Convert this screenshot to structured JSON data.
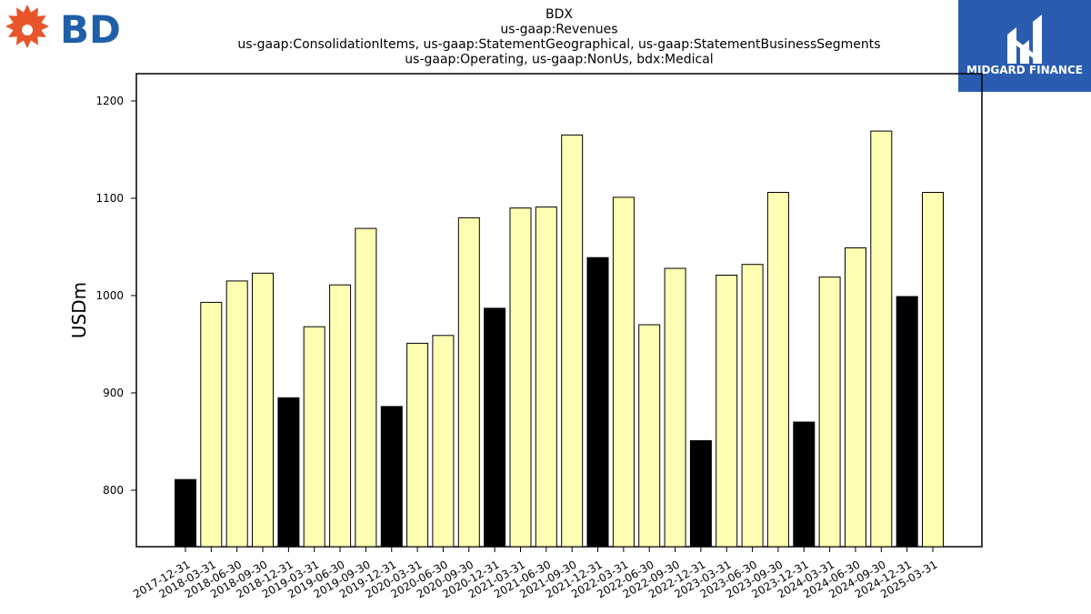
{
  "company_logo": {
    "text": "BD",
    "color": "#1f5fa8",
    "burst_color": "#e8552a"
  },
  "watermark_logo": {
    "text": "MIDGARD FINANCE",
    "bg_color": "#2a5db0"
  },
  "chart_data": {
    "type": "bar",
    "title_lines": [
      "BDX",
      "us-gaap:Revenues",
      "us-gaap:ConsolidationItems, us-gaap:StatementGeographical, us-gaap:StatementBusinessSegments",
      "us-gaap:Operating, us-gaap:NonUs, bdx:Medical"
    ],
    "ylabel": "USDm",
    "xlabel": "",
    "ylim": [
      742,
      1228
    ],
    "yticks": [
      800,
      900,
      1000,
      1100,
      1200
    ],
    "categories": [
      "2017-12-31",
      "2018-03-31",
      "2018-06-30",
      "2018-09-30",
      "2018-12-31",
      "2019-03-31",
      "2019-06-30",
      "2019-09-30",
      "2019-12-31",
      "2020-03-31",
      "2020-06-30",
      "2020-09-30",
      "2020-12-31",
      "2021-03-31",
      "2021-06-30",
      "2021-09-30",
      "2021-12-31",
      "2022-03-31",
      "2022-06-30",
      "2022-09-30",
      "2022-12-31",
      "2023-03-31",
      "2023-06-30",
      "2023-09-30",
      "2023-12-31",
      "2024-03-31",
      "2024-06-30",
      "2024-09-30",
      "2024-12-31",
      "2025-03-31"
    ],
    "values": [
      811,
      993,
      1015,
      1023,
      895,
      968,
      1011,
      1069,
      886,
      951,
      959,
      1080,
      987,
      1090,
      1091,
      1165,
      1039,
      1101,
      970,
      1028,
      851,
      1021,
      1032,
      1106,
      870,
      1019,
      1049,
      1169,
      999,
      1106
    ],
    "highlight_color": "#000000",
    "normal_color": "#ffffb3",
    "edge_color": "#000000",
    "grid": false
  }
}
